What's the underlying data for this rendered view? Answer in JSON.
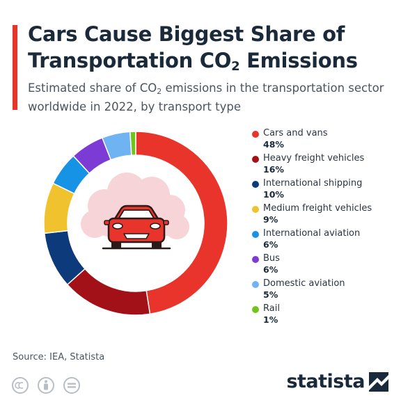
{
  "header": {
    "title_part1": "Cars Cause Biggest Share of",
    "title_part2": "Transportation CO",
    "title_sub": "2",
    "title_part3": " Emissions",
    "subtitle_part1": "Estimated share of CO",
    "subtitle_sub": "2",
    "subtitle_part2": " emissions in the transportation sector worldwide in 2022, by transport type"
  },
  "chart_data": {
    "type": "pie",
    "donut": true,
    "categories": [
      "Cars and vans",
      "Heavy freight vehicles",
      "International shipping",
      "Medium freight vehicles",
      "International aviation",
      "Bus",
      "Domestic aviation",
      "Rail"
    ],
    "values": [
      48,
      16,
      10,
      9,
      6,
      6,
      5,
      1
    ],
    "value_labels": [
      "48%",
      "16%",
      "10%",
      "9%",
      "6%",
      "6%",
      "5%",
      "1%"
    ],
    "colors": [
      "#e8342a",
      "#a31118",
      "#0d3a7a",
      "#f0c22d",
      "#1793e6",
      "#7d3bd6",
      "#6fb3f2",
      "#74c21c"
    ],
    "legend_position": "right",
    "center_icon": "car-in-smog-icon"
  },
  "footer": {
    "source": "Source: IEA, Statista",
    "brand": "statista",
    "license_icons": [
      "cc-icon",
      "attribution-icon",
      "no-derivatives-icon"
    ]
  }
}
